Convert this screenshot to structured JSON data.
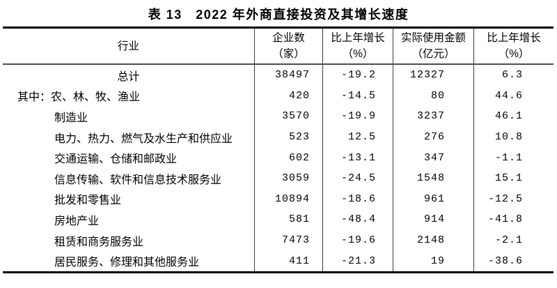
{
  "title": "表 13　2022 年外商直接投资及其增长速度",
  "colors": {
    "background": "#ffffff",
    "text": "#000000",
    "border_heavy": "#000000",
    "border_light": "#3a3a3a"
  },
  "table": {
    "header": {
      "industry": "行业",
      "col2_line1": "企业数",
      "col2_line2": "（家）",
      "col3_line1": "比上年增长",
      "col3_line2": "（%）",
      "col4_line1": "实际使用金额",
      "col4_line2": "（亿元）",
      "col5_line1": "比上年增长",
      "col5_line2": "（%）"
    },
    "rows": [
      {
        "industry": "总计",
        "enterprises": "38497",
        "enterprises_growth": "-19.2",
        "amount": "12327",
        "amount_growth": "6.3"
      },
      {
        "prefix": "其中：",
        "industry": "农、林、牧、渔业",
        "enterprises": "420",
        "enterprises_growth": "-14.5",
        "amount": "80",
        "amount_growth": "44.6"
      },
      {
        "industry": "制造业",
        "enterprises": "3570",
        "enterprises_growth": "-19.9",
        "amount": "3237",
        "amount_growth": "46.1"
      },
      {
        "industry": "电力、热力、燃气及水生产和供应业",
        "enterprises": "523",
        "enterprises_growth": "12.5",
        "amount": "276",
        "amount_growth": "10.8"
      },
      {
        "industry": "交通运输、仓储和邮政业",
        "enterprises": "602",
        "enterprises_growth": "-13.1",
        "amount": "347",
        "amount_growth": "-1.1"
      },
      {
        "industry": "信息传输、软件和信息技术服务业",
        "enterprises": "3059",
        "enterprises_growth": "-24.5",
        "amount": "1548",
        "amount_growth": "15.1"
      },
      {
        "industry": "批发和零售业",
        "enterprises": "10894",
        "enterprises_growth": "-18.6",
        "amount": "961",
        "amount_growth": "-12.5"
      },
      {
        "industry": "房地产业",
        "enterprises": "581",
        "enterprises_growth": "-48.4",
        "amount": "914",
        "amount_growth": "-41.8"
      },
      {
        "industry": "租赁和商务服务业",
        "enterprises": "7473",
        "enterprises_growth": "-19.6",
        "amount": "2148",
        "amount_growth": "-2.1"
      },
      {
        "industry": "居民服务、修理和其他服务业",
        "enterprises": "411",
        "enterprises_growth": "-21.3",
        "amount": "19",
        "amount_growth": "-38.6"
      }
    ]
  }
}
